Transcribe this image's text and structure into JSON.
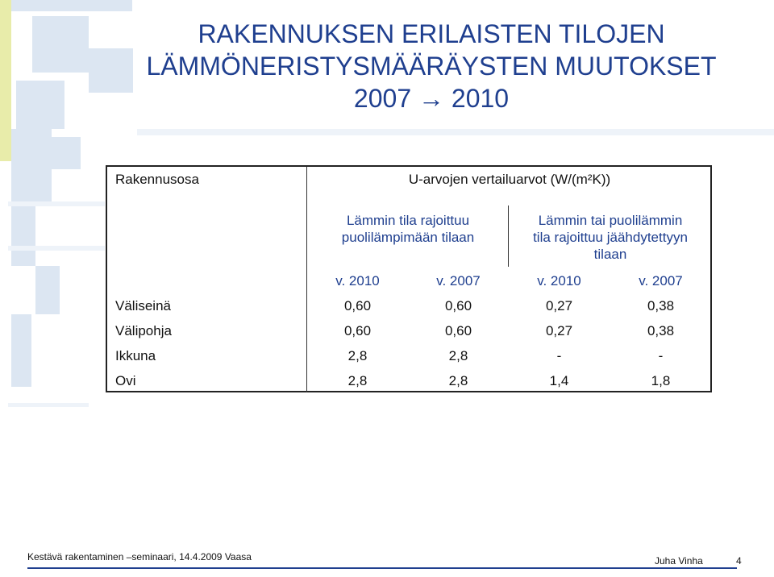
{
  "title": {
    "line1": "RAKENNUKSEN ERILAISTEN TILOJEN",
    "line2": "LÄMMÖNERISTYSMÄÄRÄYSTEN MUUTOKSET",
    "line3": "2007 → 2010"
  },
  "table": {
    "col_header": "Rakennusosa",
    "main_header": "U-arvojen vertailuarvot (W/(m²K))",
    "group1": {
      "line1": "Lämmin tila rajoittuu",
      "line2": "puolilämpimään tilaan"
    },
    "group2": {
      "line1": "Lämmin tai puolilämmin",
      "line2": "tila rajoittuu jäähdytettyyn",
      "line3": "tilaan"
    },
    "years": [
      "v. 2010",
      "v. 2007",
      "v. 2010",
      "v. 2007"
    ],
    "rows": [
      {
        "name": "Väliseinä",
        "values": [
          "0,60",
          "0,60",
          "0,27",
          "0,38"
        ]
      },
      {
        "name": "Välipohja",
        "values": [
          "0,60",
          "0,60",
          "0,27",
          "0,38"
        ]
      },
      {
        "name": "Ikkuna",
        "values": [
          "2,8",
          "2,8",
          "-",
          "-"
        ]
      },
      {
        "name": "Ovi",
        "values": [
          "2,8",
          "2,8",
          "1,4",
          "1,8"
        ]
      }
    ]
  },
  "footer": {
    "left": "Kestävä rakentaminen –seminaari, 14.4.2009 Vaasa",
    "author": "Juha Vinha",
    "page": "4"
  },
  "colors": {
    "title": "#1f3f8f",
    "deco_light": "#dce6f2",
    "deco_yellow": "#e8ecaa"
  }
}
